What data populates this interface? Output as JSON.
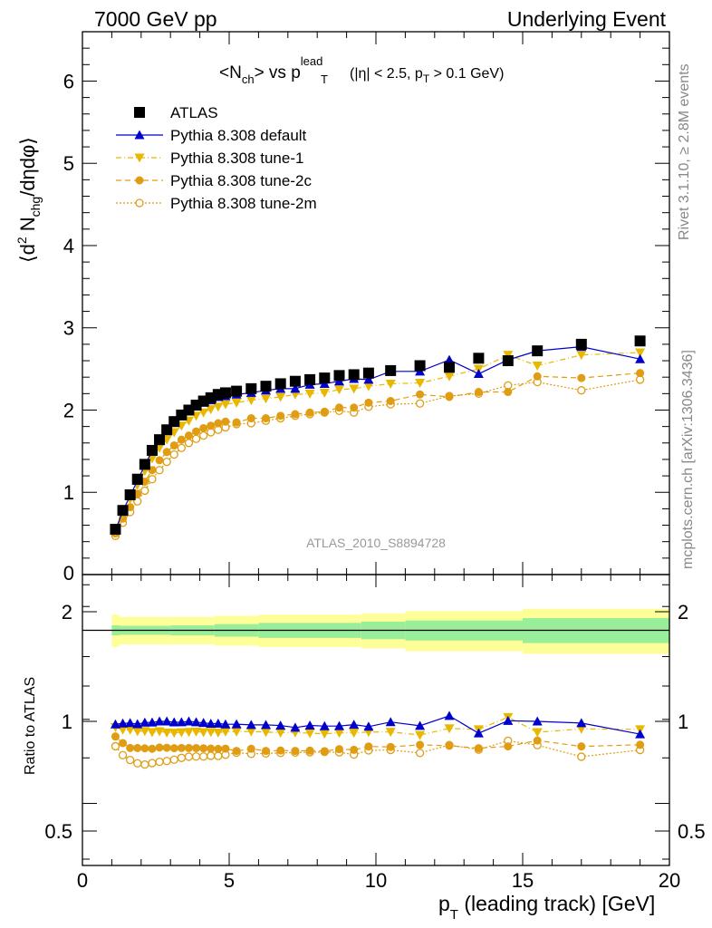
{
  "header": {
    "left": "7000 GeV pp",
    "right": "Underlying Event"
  },
  "side_labels": {
    "top": "Rivet 3.1.10, ≥ 2.8M events",
    "bottom": "mcplots.cern.ch [arXiv:1306.3436]"
  },
  "chart_data": {
    "type": "scatter",
    "title_parts": {
      "lhs": "<N",
      "lhs_sub": "ch",
      "mid": "> vs p",
      "sup": "lead",
      "sub_t": "T",
      "rest_a": "(|η| < 2.5, p",
      "rest_sub": "T",
      "rest_b": " > 0.1 GeV)"
    },
    "ylabel_parts": {
      "a": "⟨d",
      "sup": "2",
      "b": " N",
      "sub": "chg",
      "c": "/dηdφ⟩"
    },
    "ratio_ylabel": "Ratio to ATLAS",
    "xlabel_parts": {
      "a": "p",
      "sub": "T",
      "b": " (leading track) [GeV]"
    },
    "analysis_id": "ATLAS_2010_S8894728",
    "xlim": [
      0,
      20
    ],
    "ylim": [
      0,
      6.6
    ],
    "ratio_ylim": [
      0.39,
      1.25
    ],
    "x_ticks": [
      "0",
      "5",
      "10",
      "15",
      "20"
    ],
    "y_ticks": [
      "0",
      "1",
      "2",
      "3",
      "4",
      "5",
      "6"
    ],
    "ratio_ticks": [
      "0.5",
      "1",
      "2"
    ],
    "x": [
      1.125,
      1.375,
      1.625,
      1.875,
      2.125,
      2.375,
      2.625,
      2.875,
      3.125,
      3.375,
      3.625,
      3.875,
      4.125,
      4.375,
      4.625,
      4.875,
      5.25,
      5.75,
      6.25,
      6.75,
      7.25,
      7.75,
      8.25,
      8.75,
      9.25,
      9.75,
      10.5,
      11.5,
      12.5,
      13.5,
      14.5,
      15.5,
      17.0,
      19.0
    ],
    "series": [
      {
        "name": "ATLAS",
        "color": "#000000",
        "marker": "square",
        "values": [
          0.55,
          0.78,
          0.97,
          1.16,
          1.34,
          1.51,
          1.64,
          1.76,
          1.86,
          1.94,
          2.0,
          2.06,
          2.11,
          2.15,
          2.19,
          2.21,
          2.23,
          2.26,
          2.29,
          2.32,
          2.35,
          2.37,
          2.39,
          2.42,
          2.43,
          2.45,
          2.48,
          2.54,
          2.52,
          2.63,
          2.6,
          2.72,
          2.8,
          2.84
        ]
      },
      {
        "name": "Pythia 8.308 default",
        "color": "#0000cc",
        "marker": "triangle-up",
        "values": [
          0.54,
          0.77,
          0.96,
          1.14,
          1.33,
          1.5,
          1.64,
          1.76,
          1.85,
          1.93,
          2.0,
          2.05,
          2.09,
          2.12,
          2.16,
          2.17,
          2.19,
          2.21,
          2.24,
          2.26,
          2.26,
          2.31,
          2.32,
          2.35,
          2.38,
          2.37,
          2.47,
          2.47,
          2.61,
          2.44,
          2.61,
          2.72,
          2.77,
          2.62
        ]
      },
      {
        "name": "Pythia 8.308 tune-1",
        "color": "#e8b800",
        "marker": "triangle-down",
        "values": [
          0.53,
          0.74,
          0.92,
          1.09,
          1.26,
          1.41,
          1.54,
          1.64,
          1.73,
          1.81,
          1.87,
          1.93,
          1.97,
          2.01,
          2.04,
          2.07,
          2.09,
          2.12,
          2.14,
          2.16,
          2.19,
          2.2,
          2.21,
          2.25,
          2.26,
          2.29,
          2.32,
          2.33,
          2.41,
          2.5,
          2.67,
          2.54,
          2.67,
          2.7
        ]
      },
      {
        "name": "Pythia 8.308 tune-2c",
        "color": "#e09c12",
        "marker": "circle",
        "values": [
          0.5,
          0.68,
          0.82,
          0.98,
          1.13,
          1.27,
          1.39,
          1.49,
          1.57,
          1.64,
          1.69,
          1.74,
          1.78,
          1.81,
          1.84,
          1.86,
          1.85,
          1.9,
          1.9,
          1.93,
          1.95,
          1.97,
          1.98,
          2.03,
          2.03,
          2.09,
          2.11,
          2.19,
          2.16,
          2.22,
          2.22,
          2.41,
          2.39,
          2.45
        ]
      },
      {
        "name": "Pythia 8.308 tune-2m",
        "color": "#e09c12",
        "marker": "circle-open",
        "values": [
          0.47,
          0.63,
          0.76,
          0.89,
          1.02,
          1.16,
          1.27,
          1.37,
          1.46,
          1.54,
          1.6,
          1.65,
          1.69,
          1.73,
          1.76,
          1.79,
          1.83,
          1.84,
          1.87,
          1.9,
          1.93,
          1.95,
          1.97,
          1.99,
          1.97,
          2.04,
          2.07,
          2.08,
          2.17,
          2.2,
          2.3,
          2.34,
          2.24,
          2.37
        ]
      }
    ],
    "atlas_error_band": {
      "x_edges": [
        1.0,
        1.25,
        3.0,
        4.5,
        6.0,
        9.5,
        11.0,
        15.0,
        20.0
      ],
      "stat_rel": [
        0.02,
        0.018,
        0.02,
        0.025,
        0.03,
        0.035,
        0.04,
        0.05
      ],
      "total_rel": [
        0.065,
        0.055,
        0.055,
        0.06,
        0.065,
        0.07,
        0.08,
        0.09
      ]
    },
    "legend": "top-left"
  }
}
